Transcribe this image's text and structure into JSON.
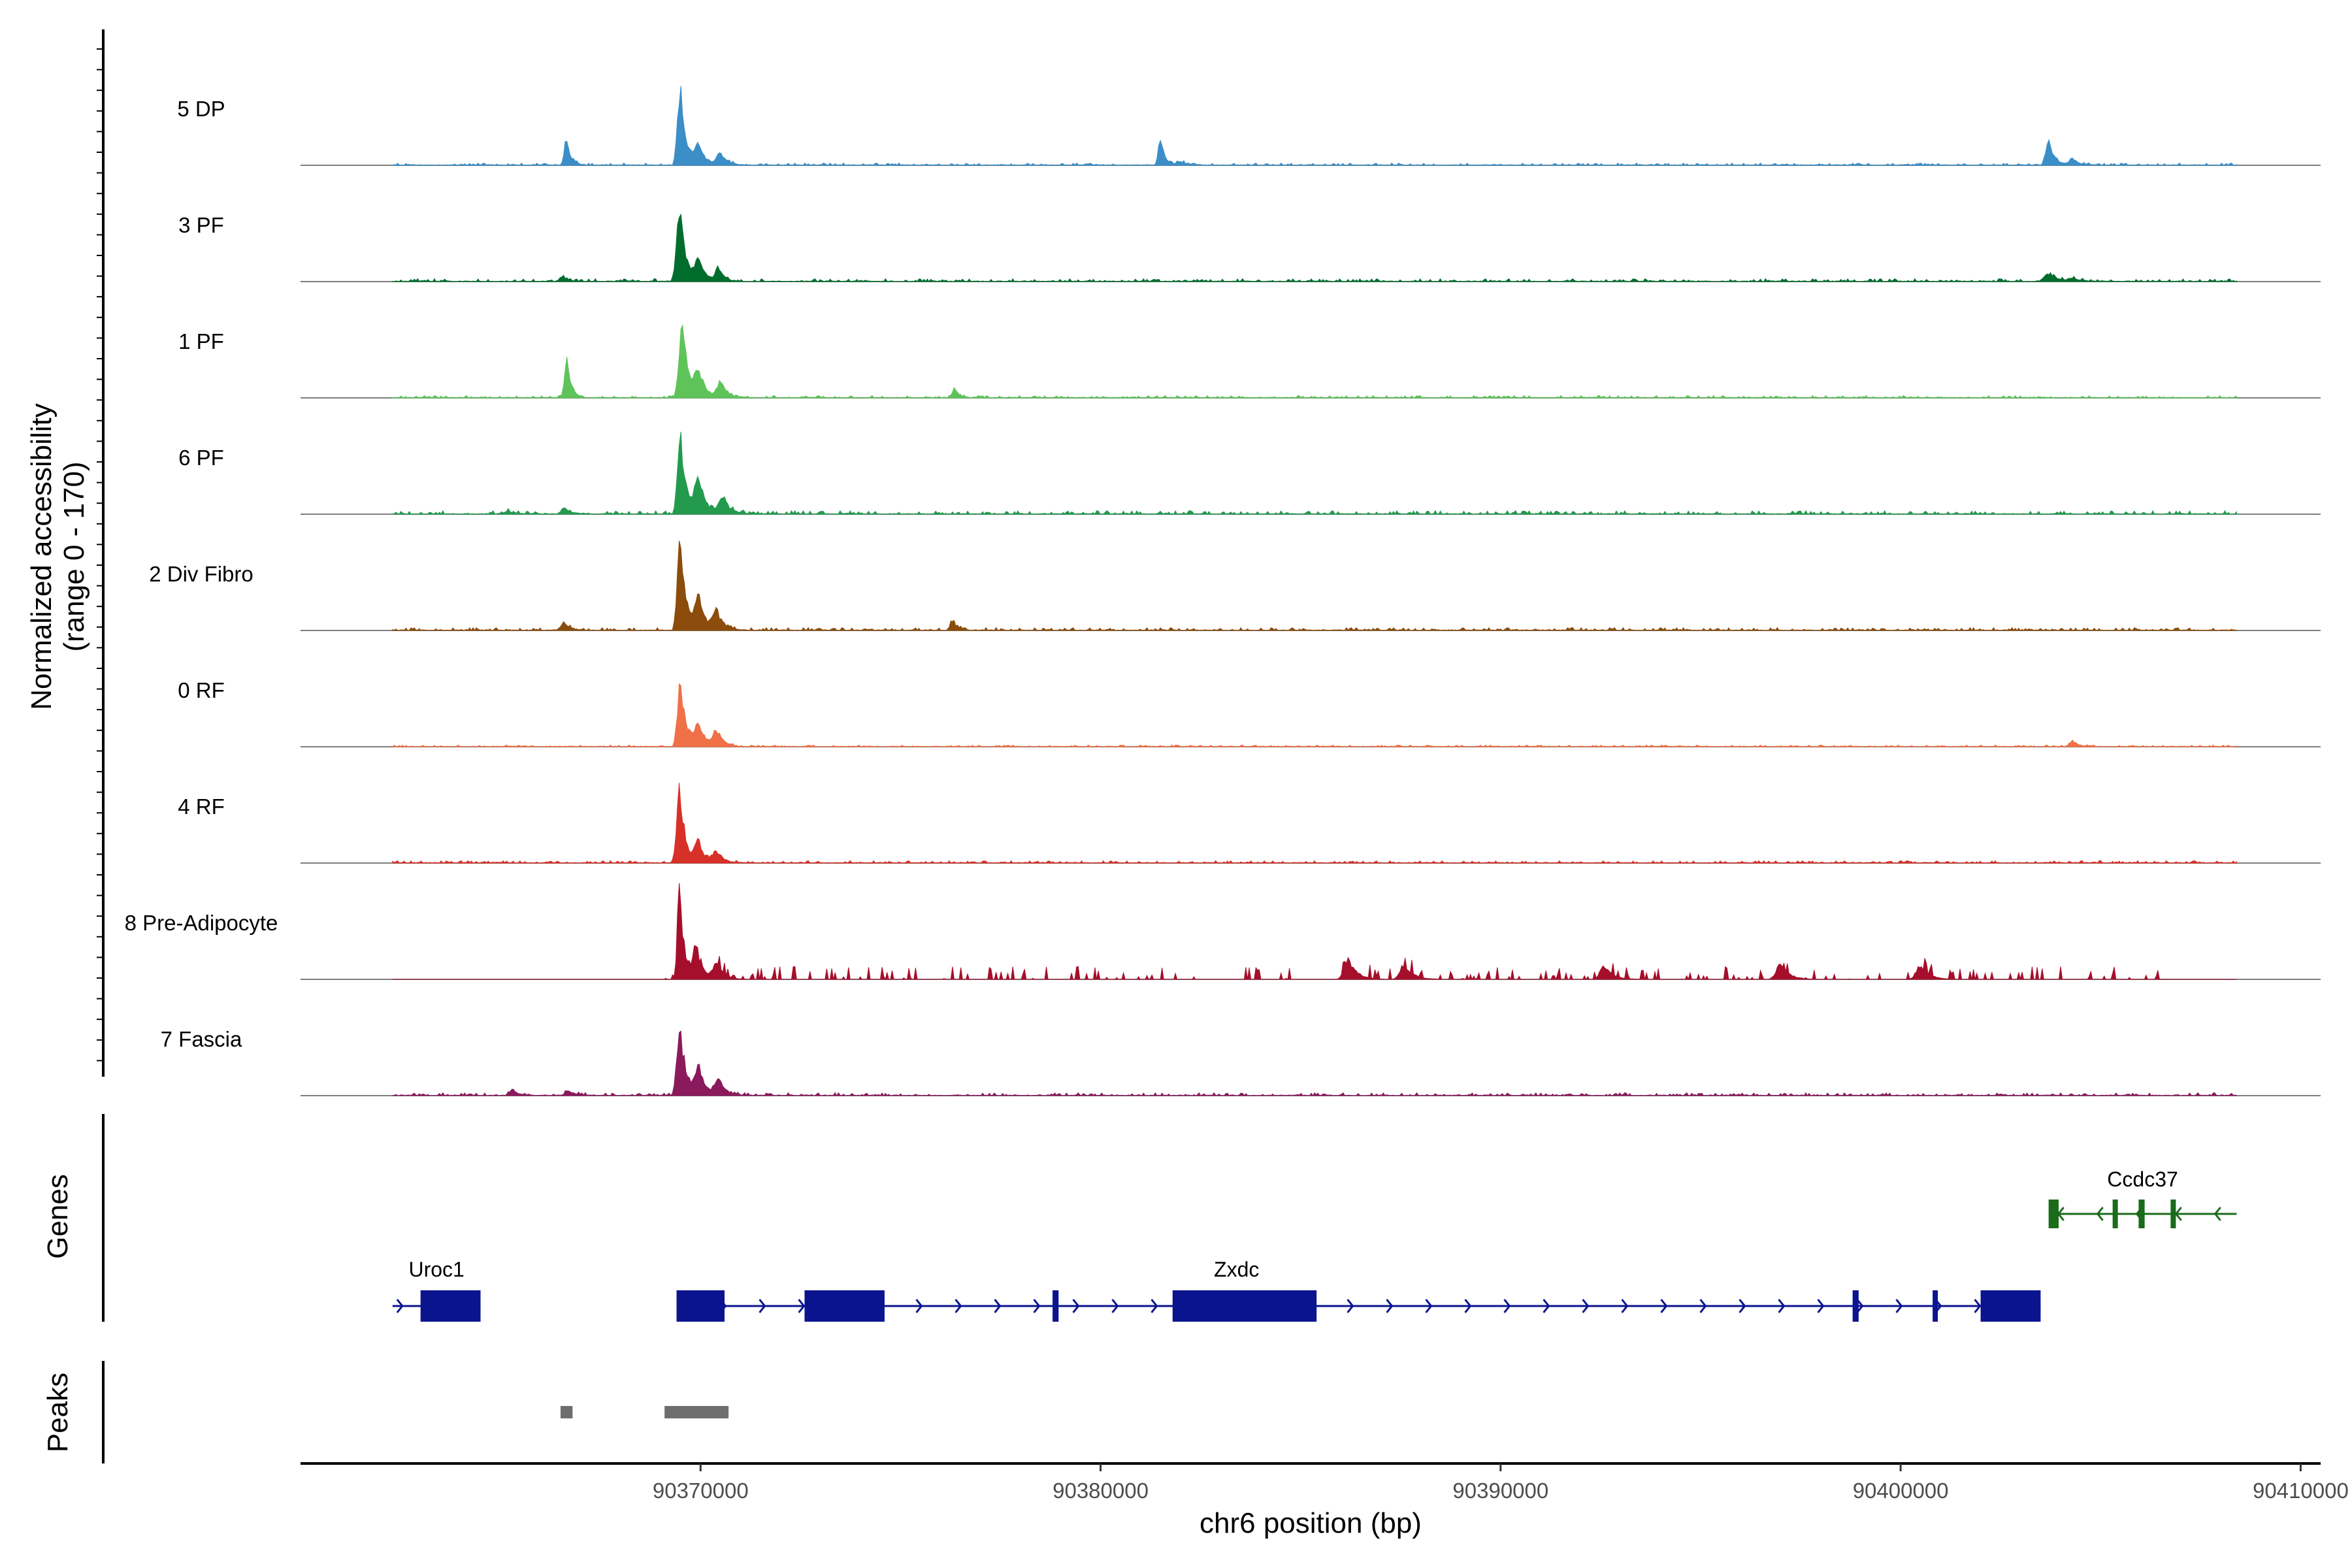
{
  "chart_data": {
    "type": "area",
    "title": "",
    "ylabel_line1": "Normalized accessibility",
    "ylabel_line2": "(range 0 - 170)",
    "ylim": [
      0,
      170
    ],
    "genes_label": "Genes",
    "peaks_label": "Peaks",
    "xlabel": "chr6 position (bp)",
    "xlim": [
      90360000,
      90410500
    ],
    "xticks": [
      90370000,
      90380000,
      90390000,
      90400000,
      90410000
    ],
    "xtick_labels": [
      "90370000",
      "90380000",
      "90390000",
      "90400000",
      "90410000"
    ],
    "region": {
      "start": 90362300,
      "end": 90408400
    },
    "tracks": [
      {
        "name": "5 DP",
        "color": "#3b8ec7",
        "peaks": [
          [
            90366650,
            55,
            150
          ],
          [
            90369500,
            160,
            200
          ],
          [
            90369950,
            40,
            250
          ],
          [
            90370500,
            22,
            250
          ],
          [
            90381500,
            52,
            150
          ],
          [
            90382000,
            8,
            200
          ],
          [
            90403700,
            48,
            200
          ],
          [
            90404300,
            14,
            200
          ]
        ],
        "noise": 4
      },
      {
        "name": "3 PF",
        "color": "#006d2c",
        "peaks": [
          [
            90369480,
            150,
            200
          ],
          [
            90369950,
            42,
            250
          ],
          [
            90370450,
            28,
            200
          ],
          [
            90366550,
            8,
            200
          ],
          [
            90403700,
            16,
            300
          ],
          [
            90404300,
            6,
            300
          ]
        ],
        "noise": 5
      },
      {
        "name": "1 PF",
        "color": "#5ec45a",
        "peaks": [
          [
            90366650,
            80,
            150
          ],
          [
            90369540,
            168,
            200
          ],
          [
            90369950,
            55,
            250
          ],
          [
            90370500,
            30,
            250
          ],
          [
            90376350,
            18,
            150
          ]
        ],
        "noise": 4
      },
      {
        "name": "6 PF",
        "color": "#239a4e",
        "peaks": [
          [
            90369500,
            160,
            200
          ],
          [
            90369950,
            70,
            250
          ],
          [
            90370550,
            35,
            250
          ],
          [
            90366600,
            14,
            200
          ],
          [
            90365200,
            5,
            300
          ]
        ],
        "noise": 6
      },
      {
        "name": "2 Div Fibro",
        "color": "#8b4c0c",
        "peaks": [
          [
            90369500,
            185,
            200
          ],
          [
            90369950,
            65,
            250
          ],
          [
            90370400,
            35,
            250
          ],
          [
            90366600,
            15,
            200
          ],
          [
            90376300,
            22,
            150
          ]
        ],
        "noise": 5
      },
      {
        "name": "0 RF",
        "color": "#f07048",
        "peaks": [
          [
            90369500,
            140,
            200
          ],
          [
            90369950,
            42,
            250
          ],
          [
            90370400,
            30,
            250
          ],
          [
            90404300,
            12,
            200
          ]
        ],
        "noise": 3
      },
      {
        "name": "4 RF",
        "color": "#d73028",
        "peaks": [
          [
            90369480,
            150,
            200
          ],
          [
            90369950,
            40,
            250
          ],
          [
            90370400,
            22,
            250
          ]
        ],
        "noise": 4
      },
      {
        "name": "8 Pre-Adipocyte",
        "color": "#a50f2b",
        "peaks": [
          [
            90369480,
            195,
            150
          ],
          [
            90369900,
            60,
            250
          ],
          [
            90370400,
            30,
            250
          ],
          [
            90386200,
            40,
            300
          ],
          [
            90387600,
            30,
            300
          ],
          [
            90392600,
            26,
            300
          ],
          [
            90397000,
            30,
            300
          ],
          [
            90400500,
            28,
            300
          ]
        ],
        "noise": 14
      },
      {
        "name": "7 Fascia",
        "color": "#8a1a5c",
        "peaks": [
          [
            90369480,
            145,
            200
          ],
          [
            90369950,
            55,
            250
          ],
          [
            90370450,
            30,
            250
          ],
          [
            90365300,
            12,
            200
          ],
          [
            90366700,
            10,
            200
          ]
        ],
        "noise": 5
      }
    ],
    "genes": [
      {
        "name": "Uroc1",
        "strand": "+",
        "color": "#0b148f",
        "start": 90362300,
        "end": 90364500,
        "exons": [
          [
            90363000,
            90364500
          ]
        ]
      },
      {
        "name": "Zxdc",
        "strand": "+",
        "color": "#0b148f",
        "start": 90369400,
        "end": 90403500,
        "exons": [
          [
            90369400,
            90370600
          ],
          [
            90372600,
            90374600
          ],
          [
            90378800,
            90378950
          ],
          [
            90381800,
            90385400
          ],
          [
            90398800,
            90398950
          ],
          [
            90400800,
            90400880
          ],
          [
            90402000,
            90403500
          ]
        ]
      },
      {
        "name": "Ccdc37",
        "strand": "-",
        "color": "#1a6b1a",
        "start": 90403700,
        "end": 90408400,
        "exons": [
          [
            90403700,
            90403950
          ],
          [
            90405300,
            90405380
          ],
          [
            90405950,
            90406100
          ],
          [
            90406750,
            90406850
          ]
        ]
      }
    ],
    "peaks": [
      [
        90366500,
        90366800
      ],
      [
        90369100,
        90370700
      ]
    ]
  }
}
